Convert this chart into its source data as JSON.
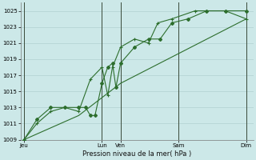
{
  "title": "",
  "xlabel": "Pression niveau de la mer( hPa )",
  "ylabel": "",
  "bg_color": "#cce8e8",
  "grid_color": "#aacccc",
  "line_color": "#2d6e2d",
  "ylim": [
    1009,
    1026
  ],
  "ytick_vals": [
    1009,
    1011,
    1013,
    1015,
    1017,
    1019,
    1021,
    1023,
    1025
  ],
  "xlim": [
    0,
    10
  ],
  "x_day_labels": [
    "Jeu",
    "Lun",
    "Ven",
    "Sam",
    "Dim"
  ],
  "x_day_positions": [
    0.15,
    3.5,
    4.3,
    6.8,
    9.7
  ],
  "x_vlines": [
    0.15,
    3.5,
    4.3,
    6.8,
    9.7
  ],
  "series1_x": [
    0.15,
    0.7,
    1.3,
    1.9,
    2.5,
    2.8,
    3.0,
    3.2,
    3.5,
    3.75,
    3.95,
    4.1,
    4.3,
    4.9,
    5.5,
    6.0,
    6.5,
    7.2,
    8.0,
    8.8,
    9.7
  ],
  "series1_y": [
    1009,
    1011.5,
    1013,
    1013,
    1013,
    1013,
    1012,
    1012,
    1016,
    1018,
    1018.5,
    1015.5,
    1018.5,
    1020.5,
    1021.5,
    1021.5,
    1023.5,
    1024.0,
    1025,
    1025,
    1025
  ],
  "series2_x": [
    0.15,
    0.7,
    1.3,
    1.9,
    2.5,
    3.0,
    3.5,
    3.75,
    3.95,
    4.3,
    4.9,
    5.5,
    5.9,
    6.5,
    7.5,
    8.8,
    9.7
  ],
  "series2_y": [
    1009,
    1011,
    1012.5,
    1013,
    1012.5,
    1016.5,
    1018,
    1014.5,
    1018,
    1020.5,
    1021.5,
    1021,
    1023.5,
    1024,
    1025,
    1025,
    1024
  ],
  "series3_x": [
    0.15,
    2.5,
    4.3,
    9.7
  ],
  "series3_y": [
    1009,
    1012,
    1016,
    1024
  ]
}
